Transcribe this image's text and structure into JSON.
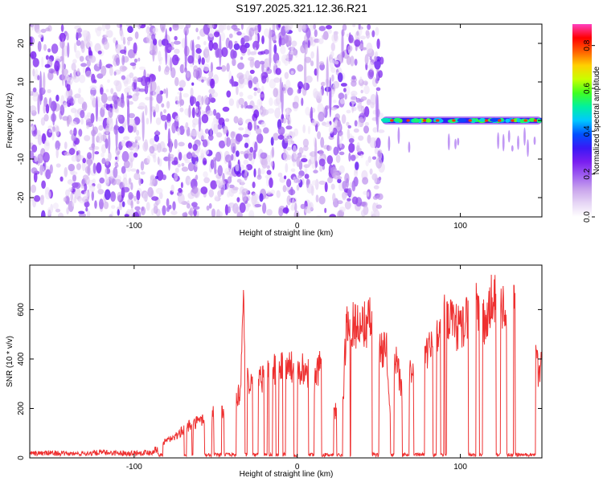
{
  "title": "S197.2025.321.12.36.R21",
  "chart_data": [
    {
      "type": "heatmap",
      "xlabel": "Height of straight line (km)",
      "ylabel": "Frequency (Hz)",
      "xlim": [
        -164,
        150
      ],
      "ylim": [
        -25,
        25
      ],
      "xticks": [
        -100,
        0,
        100
      ],
      "yticks": [
        -20,
        -10,
        0,
        10,
        20
      ],
      "colorbar": {
        "label": "Normalized spectral amplitude",
        "range": [
          0.0,
          0.9
        ],
        "ticks": [
          0.0,
          0.2,
          0.4,
          0.6,
          0.8
        ],
        "colormap": [
          "#ffffff",
          "#e6d6f5",
          "#c9a4ec",
          "#9f5ff0",
          "#7a1ef0",
          "#3a18f5",
          "#0050ff",
          "#00c8ff",
          "#00f0a0",
          "#40ff20",
          "#c8ff00",
          "#ffd000",
          "#ff6000",
          "#ff0000",
          "#ff40c0"
        ]
      },
      "regions": [
        {
          "x_range": [
            -164,
            52
          ],
          "description": "broadband noise, amplitude 0.05-0.25"
        },
        {
          "x_range": [
            52,
            150
          ],
          "center_frequency": 0,
          "description": "narrow tone at 0 Hz, amplitude 0.3-0.8"
        }
      ],
      "tone_peaks_x": [
        58,
        68,
        78,
        86,
        96,
        106,
        116,
        124,
        132,
        140,
        146
      ]
    },
    {
      "type": "line",
      "xlabel": "Height of straight line (km)",
      "ylabel": "SNR (10 * v/v)",
      "xlim": [
        -164,
        150
      ],
      "ylim": [
        0,
        780
      ],
      "xticks": [
        -100,
        0,
        100
      ],
      "yticks": [
        0,
        200,
        400,
        600
      ],
      "color": "#ee3030",
      "series": [
        {
          "x": [
            -164,
            -150,
            -140,
            -130,
            -120,
            -110,
            -100,
            -90,
            -85,
            -80,
            -75,
            -70,
            -65,
            -60,
            -55,
            -50,
            -45,
            -40,
            -35,
            -33,
            -30,
            -25,
            -20,
            -15,
            -10,
            -5,
            0,
            5,
            10,
            15,
            18,
            20,
            25,
            28,
            30,
            33,
            35,
            40,
            45,
            50,
            55,
            58,
            60,
            65,
            70,
            75,
            80,
            85,
            90,
            95,
            100,
            105,
            110,
            115,
            120,
            125,
            130,
            135,
            140,
            145,
            148,
            150
          ],
          "y": [
            20,
            22,
            18,
            20,
            24,
            22,
            22,
            25,
            45,
            80,
            90,
            120,
            150,
            160,
            180,
            200,
            210,
            240,
            280,
            640,
            330,
            320,
            360,
            380,
            400,
            400,
            380,
            400,
            320,
            420,
            210,
            260,
            180,
            230,
            570,
            600,
            590,
            580,
            600,
            480,
            470,
            10,
            450,
            260,
            400,
            430,
            470,
            500,
            620,
            580,
            560,
            620,
            650,
            580,
            700,
            660,
            700,
            640,
            620,
            650,
            340,
            440
          ]
        }
      ]
    }
  ]
}
